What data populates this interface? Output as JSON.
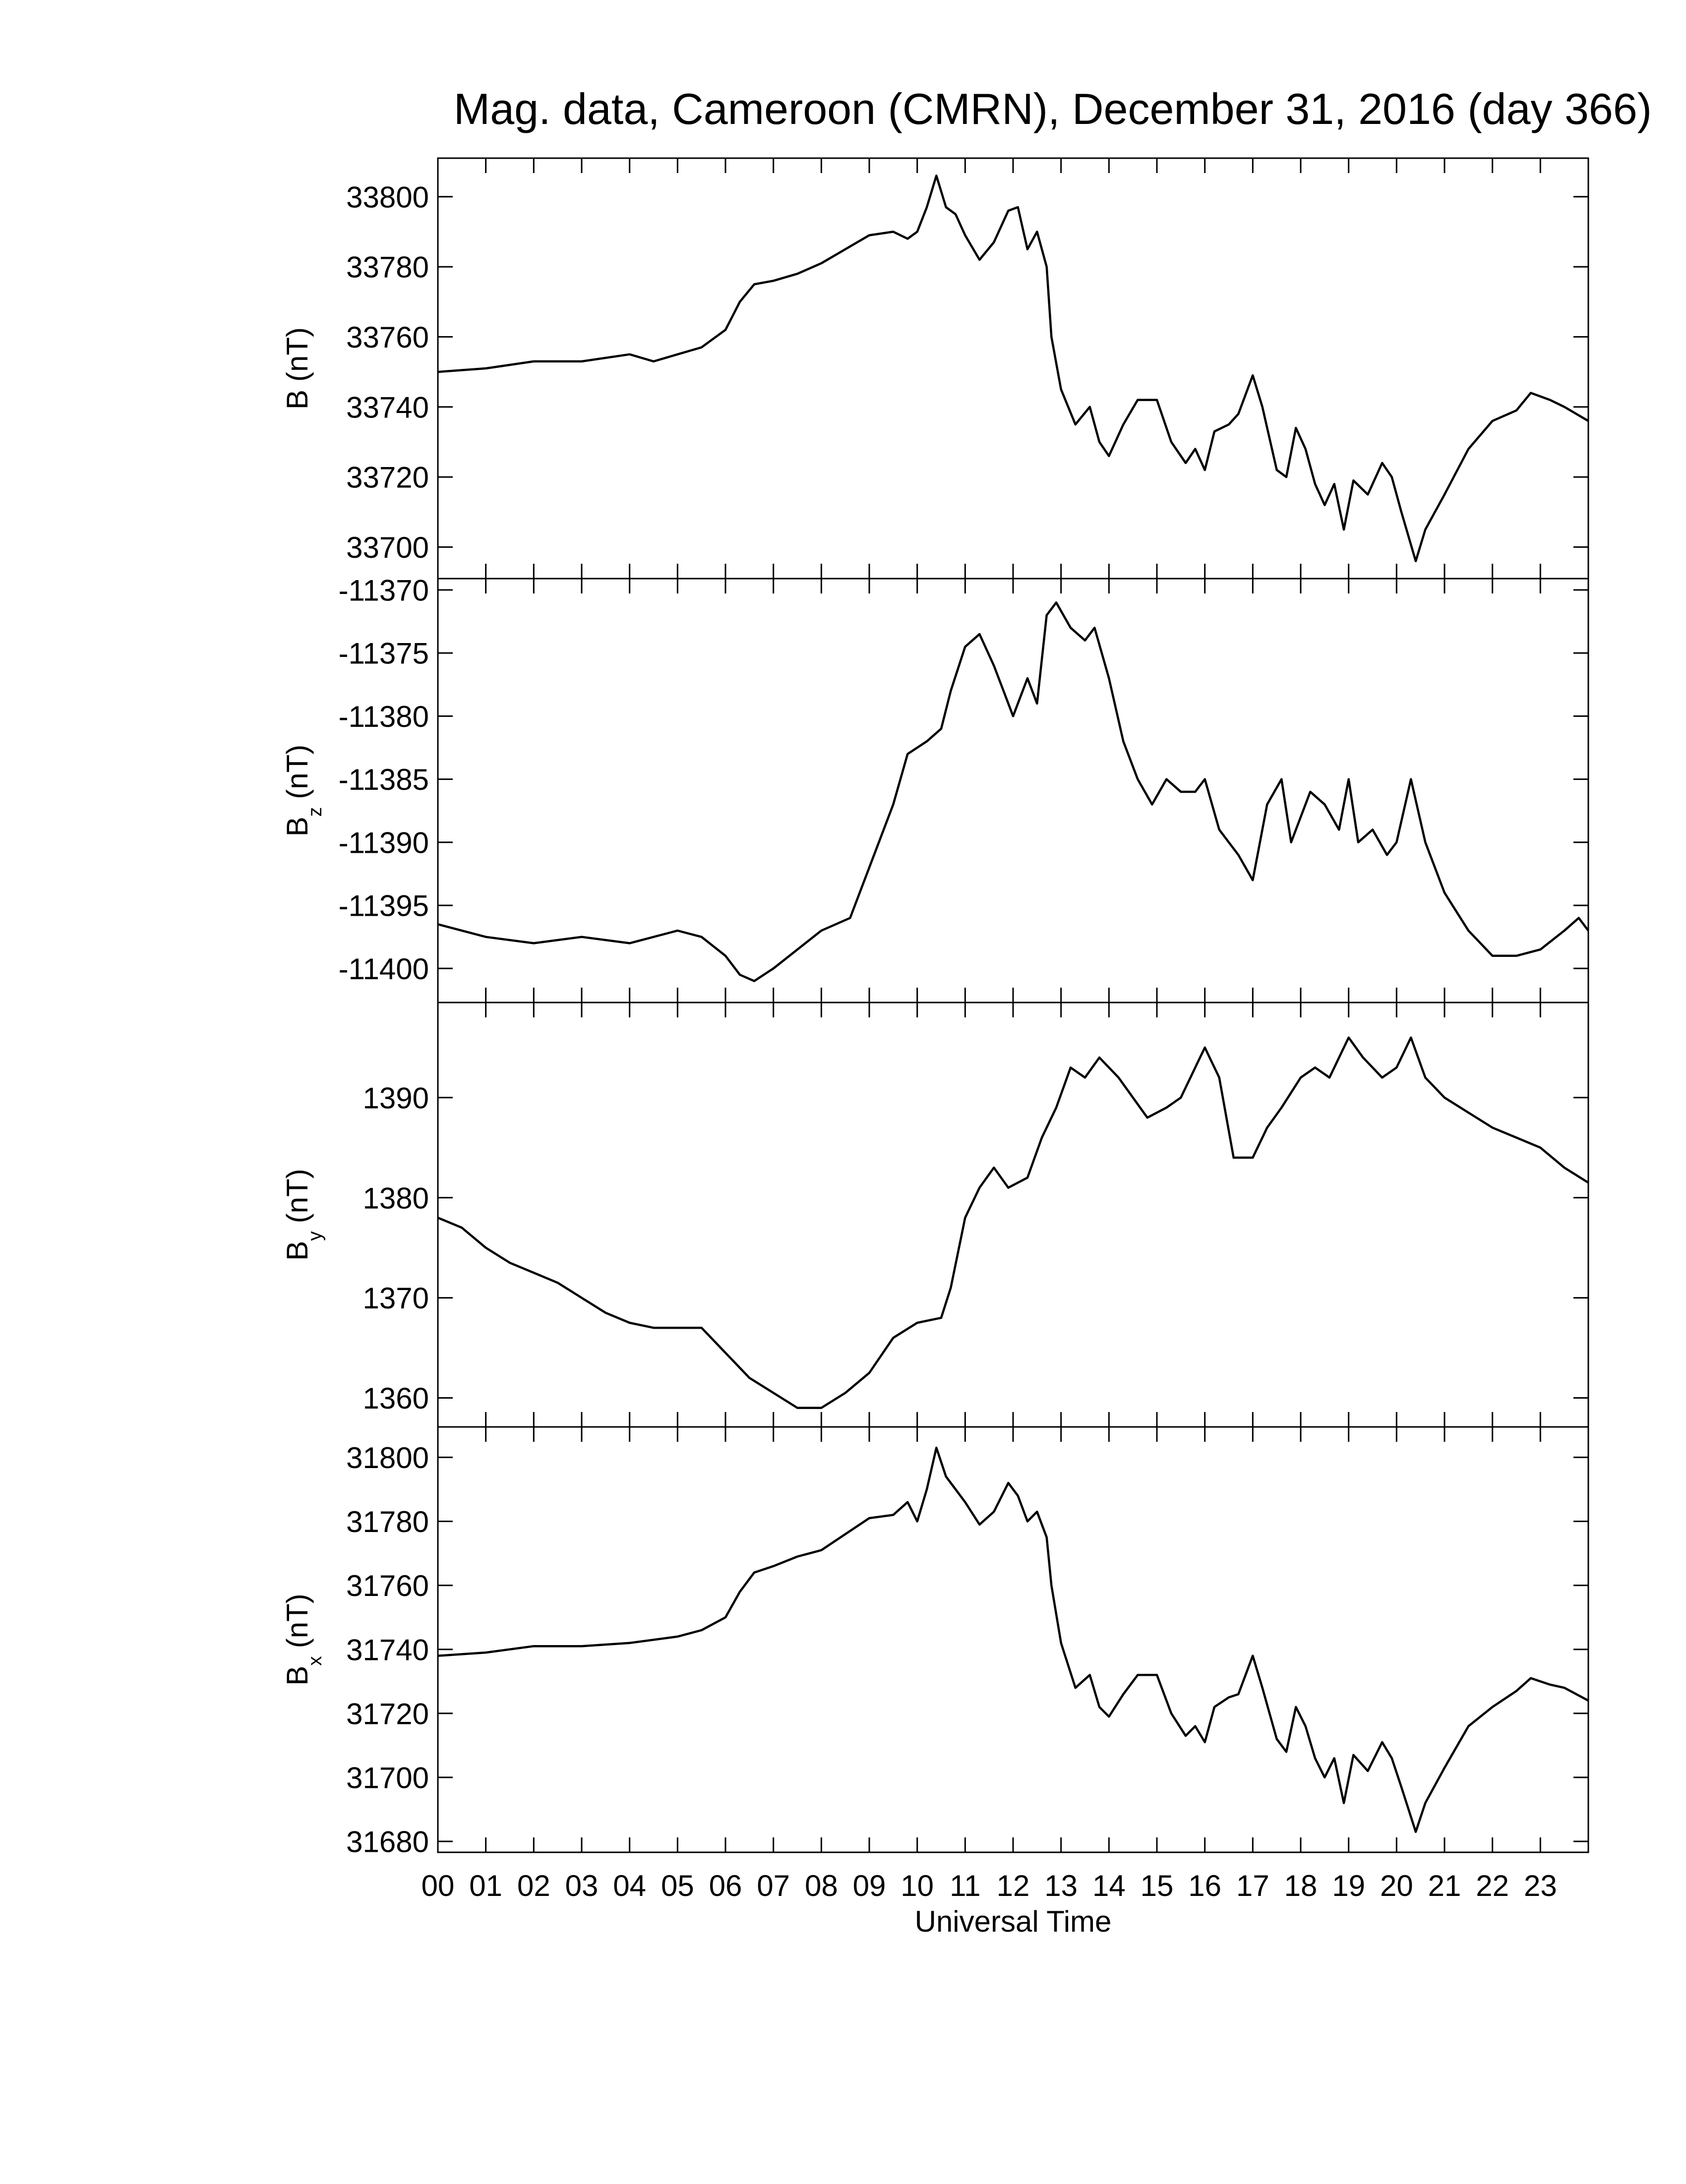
{
  "chart_data": [
    {
      "type": "line",
      "title": "Mag. data, Cameroon (CMRN), December 31, 2016 (day 366)",
      "ylabel": {
        "symbol": "B",
        "unit": "(nT)"
      },
      "color": "#000000",
      "xlim": [
        0,
        24
      ],
      "ylim": [
        33691,
        33811
      ],
      "yticks": [
        33700,
        33720,
        33740,
        33760,
        33780,
        33800
      ],
      "x": [
        0,
        1,
        2,
        3,
        4,
        4.5,
        5,
        5.5,
        6,
        6.3,
        6.6,
        7,
        7.5,
        8,
        8.5,
        9,
        9.5,
        9.8,
        10,
        10.2,
        10.4,
        10.6,
        10.8,
        11,
        11.3,
        11.6,
        11.9,
        12.1,
        12.3,
        12.5,
        12.7,
        12.8,
        13,
        13.3,
        13.6,
        13.8,
        14,
        14.3,
        14.6,
        15,
        15.3,
        15.6,
        15.8,
        16,
        16.2,
        16.5,
        16.7,
        17,
        17.2,
        17.5,
        17.7,
        17.9,
        18.1,
        18.3,
        18.5,
        18.7,
        18.9,
        19.1,
        19.4,
        19.7,
        19.9,
        20.1,
        20.4,
        20.6,
        21,
        21.5,
        22,
        22.5,
        22.8,
        23.2,
        23.5,
        24
      ],
      "values": [
        33750,
        33751,
        33753,
        33753,
        33755,
        33753,
        33755,
        33757,
        33762,
        33770,
        33775,
        33776,
        33778,
        33781,
        33785,
        33789,
        33790,
        33788,
        33790,
        33797,
        33806,
        33797,
        33795,
        33789,
        33782,
        33787,
        33796,
        33797,
        33785,
        33790,
        33780,
        33760,
        33745,
        33735,
        33740,
        33730,
        33726,
        33735,
        33742,
        33742,
        33730,
        33724,
        33728,
        33722,
        33733,
        33735,
        33738,
        33749,
        33740,
        33722,
        33720,
        33734,
        33728,
        33718,
        33712,
        33718,
        33705,
        33719,
        33715,
        33724,
        33720,
        33710,
        33696,
        33705,
        33715,
        33728,
        33736,
        33739,
        33744,
        33742,
        33740,
        33736
      ]
    },
    {
      "type": "line",
      "ylabel": {
        "symbol": "B",
        "subscript": "z",
        "unit": "(nT)"
      },
      "color": "#000000",
      "xlim": [
        0,
        24
      ],
      "ylim": [
        -11402.7,
        -11369.1
      ],
      "yticks": [
        -11400,
        -11395,
        -11390,
        -11385,
        -11380,
        -11375,
        -11370
      ],
      "x": [
        0,
        1,
        2,
        3,
        4,
        5,
        5.5,
        6,
        6.3,
        6.6,
        7,
        7.5,
        8,
        8.6,
        9,
        9.5,
        9.8,
        10.2,
        10.5,
        10.7,
        11,
        11.3,
        11.6,
        11.8,
        12,
        12.3,
        12.5,
        12.7,
        12.9,
        13.2,
        13.5,
        13.7,
        14,
        14.3,
        14.6,
        14.9,
        15.2,
        15.5,
        15.8,
        16,
        16.3,
        16.7,
        17,
        17.3,
        17.6,
        17.8,
        18.2,
        18.5,
        18.8,
        19,
        19.2,
        19.5,
        19.8,
        20,
        20.3,
        20.6,
        21,
        21.5,
        22,
        22.5,
        23,
        23.5,
        23.8,
        24
      ],
      "values": [
        -11396.5,
        -11397.5,
        -11398,
        -11397.5,
        -11398,
        -11397,
        -11397.5,
        -11399,
        -11400.5,
        -11401,
        -11400,
        -11398.5,
        -11397,
        -11396,
        -11392,
        -11387,
        -11383,
        -11382,
        -11381,
        -11378,
        -11374.5,
        -11373.5,
        -11376,
        -11378,
        -11380,
        -11377,
        -11379,
        -11372,
        -11371,
        -11373,
        -11374,
        -11373,
        -11377,
        -11382,
        -11385,
        -11387,
        -11385,
        -11386,
        -11386,
        -11385,
        -11389,
        -11391,
        -11393,
        -11387,
        -11385,
        -11390,
        -11386,
        -11387,
        -11389,
        -11385,
        -11390,
        -11389,
        -11391,
        -11390,
        -11385,
        -11390,
        -11394,
        -11397,
        -11399,
        -11399,
        -11398.5,
        -11397,
        -11396,
        -11397
      ]
    },
    {
      "type": "line",
      "ylabel": {
        "symbol": "B",
        "subscript": "y",
        "unit": "(nT)"
      },
      "color": "#000000",
      "xlim": [
        0,
        24
      ],
      "ylim": [
        1357.1,
        1399.5
      ],
      "yticks": [
        1360,
        1370,
        1380,
        1390
      ],
      "x": [
        0,
        0.5,
        1,
        1.5,
        2,
        2.5,
        3,
        3.5,
        4,
        4.5,
        5,
        5.5,
        6,
        6.5,
        7,
        7.5,
        8,
        8.5,
        9,
        9.5,
        10,
        10.5,
        10.7,
        11,
        11.3,
        11.6,
        11.9,
        12.3,
        12.6,
        12.9,
        13.2,
        13.5,
        13.8,
        14.2,
        14.5,
        14.8,
        15.2,
        15.5,
        15.8,
        16,
        16.3,
        16.6,
        17,
        17.3,
        17.6,
        18,
        18.3,
        18.6,
        19,
        19.3,
        19.7,
        20,
        20.3,
        20.6,
        21,
        21.5,
        22,
        22.5,
        23,
        23.5,
        24
      ],
      "values": [
        1378,
        1377,
        1375,
        1373.5,
        1372.5,
        1371.5,
        1370,
        1368.5,
        1367.5,
        1367,
        1367,
        1367,
        1364.5,
        1362,
        1360.5,
        1359,
        1359,
        1360.5,
        1362.5,
        1366,
        1367.5,
        1368,
        1371,
        1378,
        1381,
        1383,
        1381,
        1382,
        1386,
        1389,
        1393,
        1392,
        1394,
        1392,
        1390,
        1388,
        1389,
        1390,
        1393,
        1395,
        1392,
        1384,
        1384,
        1387,
        1389,
        1392,
        1393,
        1392,
        1396,
        1394,
        1392,
        1393,
        1396,
        1392,
        1390,
        1388.5,
        1387,
        1386,
        1385,
        1383,
        1381.5
      ]
    },
    {
      "type": "line",
      "ylabel": {
        "symbol": "B",
        "subscript": "x",
        "unit": "(nT)"
      },
      "xlabel": "Universal Time",
      "color": "#000000",
      "xlim": [
        0,
        24
      ],
      "ylim": [
        31676.6,
        31809.5
      ],
      "yticks": [
        31680,
        31700,
        31720,
        31740,
        31760,
        31780,
        31800
      ],
      "xticks": [
        {
          "value": 0,
          "label": "00"
        },
        {
          "value": 1,
          "label": "01"
        },
        {
          "value": 2,
          "label": "02"
        },
        {
          "value": 3,
          "label": "03"
        },
        {
          "value": 4,
          "label": "04"
        },
        {
          "value": 5,
          "label": "05"
        },
        {
          "value": 6,
          "label": "06"
        },
        {
          "value": 7,
          "label": "07"
        },
        {
          "value": 8,
          "label": "08"
        },
        {
          "value": 9,
          "label": "09"
        },
        {
          "value": 10,
          "label": "10"
        },
        {
          "value": 11,
          "label": "11"
        },
        {
          "value": 12,
          "label": "12"
        },
        {
          "value": 13,
          "label": "13"
        },
        {
          "value": 14,
          "label": "14"
        },
        {
          "value": 15,
          "label": "15"
        },
        {
          "value": 16,
          "label": "16"
        },
        {
          "value": 17,
          "label": "17"
        },
        {
          "value": 18,
          "label": "18"
        },
        {
          "value": 19,
          "label": "19"
        },
        {
          "value": 20,
          "label": "20"
        },
        {
          "value": 21,
          "label": "21"
        },
        {
          "value": 22,
          "label": "22"
        },
        {
          "value": 23,
          "label": "23"
        }
      ],
      "x": [
        0,
        1,
        2,
        3,
        4,
        5,
        5.5,
        6,
        6.3,
        6.6,
        7,
        7.5,
        8,
        8.5,
        9,
        9.5,
        9.8,
        10,
        10.2,
        10.4,
        10.6,
        10.8,
        11,
        11.3,
        11.6,
        11.9,
        12.1,
        12.3,
        12.5,
        12.7,
        12.8,
        13,
        13.3,
        13.6,
        13.8,
        14,
        14.3,
        14.6,
        15,
        15.3,
        15.6,
        15.8,
        16,
        16.2,
        16.5,
        16.7,
        17,
        17.2,
        17.5,
        17.7,
        17.9,
        18.1,
        18.3,
        18.5,
        18.7,
        18.9,
        19.1,
        19.4,
        19.7,
        19.9,
        20.1,
        20.4,
        20.6,
        21,
        21.5,
        22,
        22.5,
        22.8,
        23.2,
        23.5,
        24
      ],
      "values": [
        31738,
        31739,
        31741,
        31741,
        31742,
        31744,
        31746,
        31750,
        31758,
        31764,
        31766,
        31769,
        31771,
        31776,
        31781,
        31782,
        31786,
        31780,
        31790,
        31803,
        31794,
        31790,
        31786,
        31779,
        31783,
        31792,
        31788,
        31780,
        31783,
        31775,
        31760,
        31742,
        31728,
        31732,
        31722,
        31719,
        31726,
        31732,
        31732,
        31720,
        31713,
        31716,
        31711,
        31722,
        31725,
        31726,
        31738,
        31728,
        31712,
        31708,
        31722,
        31716,
        31706,
        31700,
        31706,
        31692,
        31707,
        31702,
        31711,
        31706,
        31697,
        31683,
        31692,
        31703,
        31716,
        31722,
        31727,
        31731,
        31729,
        31728,
        31724
      ]
    }
  ]
}
